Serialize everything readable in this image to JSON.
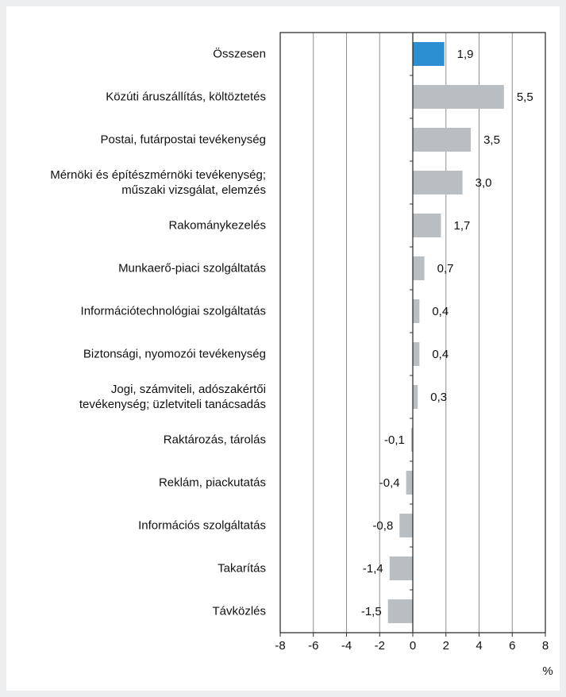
{
  "chart_data": {
    "type": "bar",
    "categories": [
      "Összesen",
      "Közúti áruszállítás, költöztetés",
      "Postai, futárpostai tevékenység",
      "Mérnöki és építészmérnöki tevékenység;\nműszaki vizsgálat, elemzés",
      "Rakománykezelés",
      "Munkaerő-piaci szolgáltatás",
      "Információtechnológiai szolgáltatás",
      "Biztonsági, nyomozói tevékenység",
      "Jogi, számviteli, adószakértői\ntevékenység; üzletviteli tanácsadás",
      "Raktározás, tárolás",
      "Reklám, piackutatás",
      "Információs szolgáltatás",
      "Takarítás",
      "Távközlés"
    ],
    "values": [
      1.9,
      5.5,
      3.5,
      3.0,
      1.7,
      0.7,
      0.4,
      0.4,
      0.3,
      -0.1,
      -0.4,
      -0.8,
      -1.4,
      -1.5
    ],
    "value_labels": [
      "1,9",
      "5,5",
      "3,5",
      "3,0",
      "1,7",
      "0,7",
      "0,4",
      "0,4",
      "0,3",
      "-0,1",
      "-0,4",
      "-0,8",
      "-1,4",
      "-1,5"
    ],
    "colors": [
      "#2b8fd1",
      "#b9bec3",
      "#b9bec3",
      "#b9bec3",
      "#b9bec3",
      "#b9bec3",
      "#b9bec3",
      "#b9bec3",
      "#b9bec3",
      "#b9bec3",
      "#b9bec3",
      "#b9bec3",
      "#b9bec3",
      "#b9bec3"
    ],
    "xlim": [
      -8,
      8
    ],
    "xticks": [
      -8,
      -6,
      -4,
      -2,
      0,
      2,
      4,
      6,
      8
    ],
    "xlabel": "%",
    "grid": true
  }
}
